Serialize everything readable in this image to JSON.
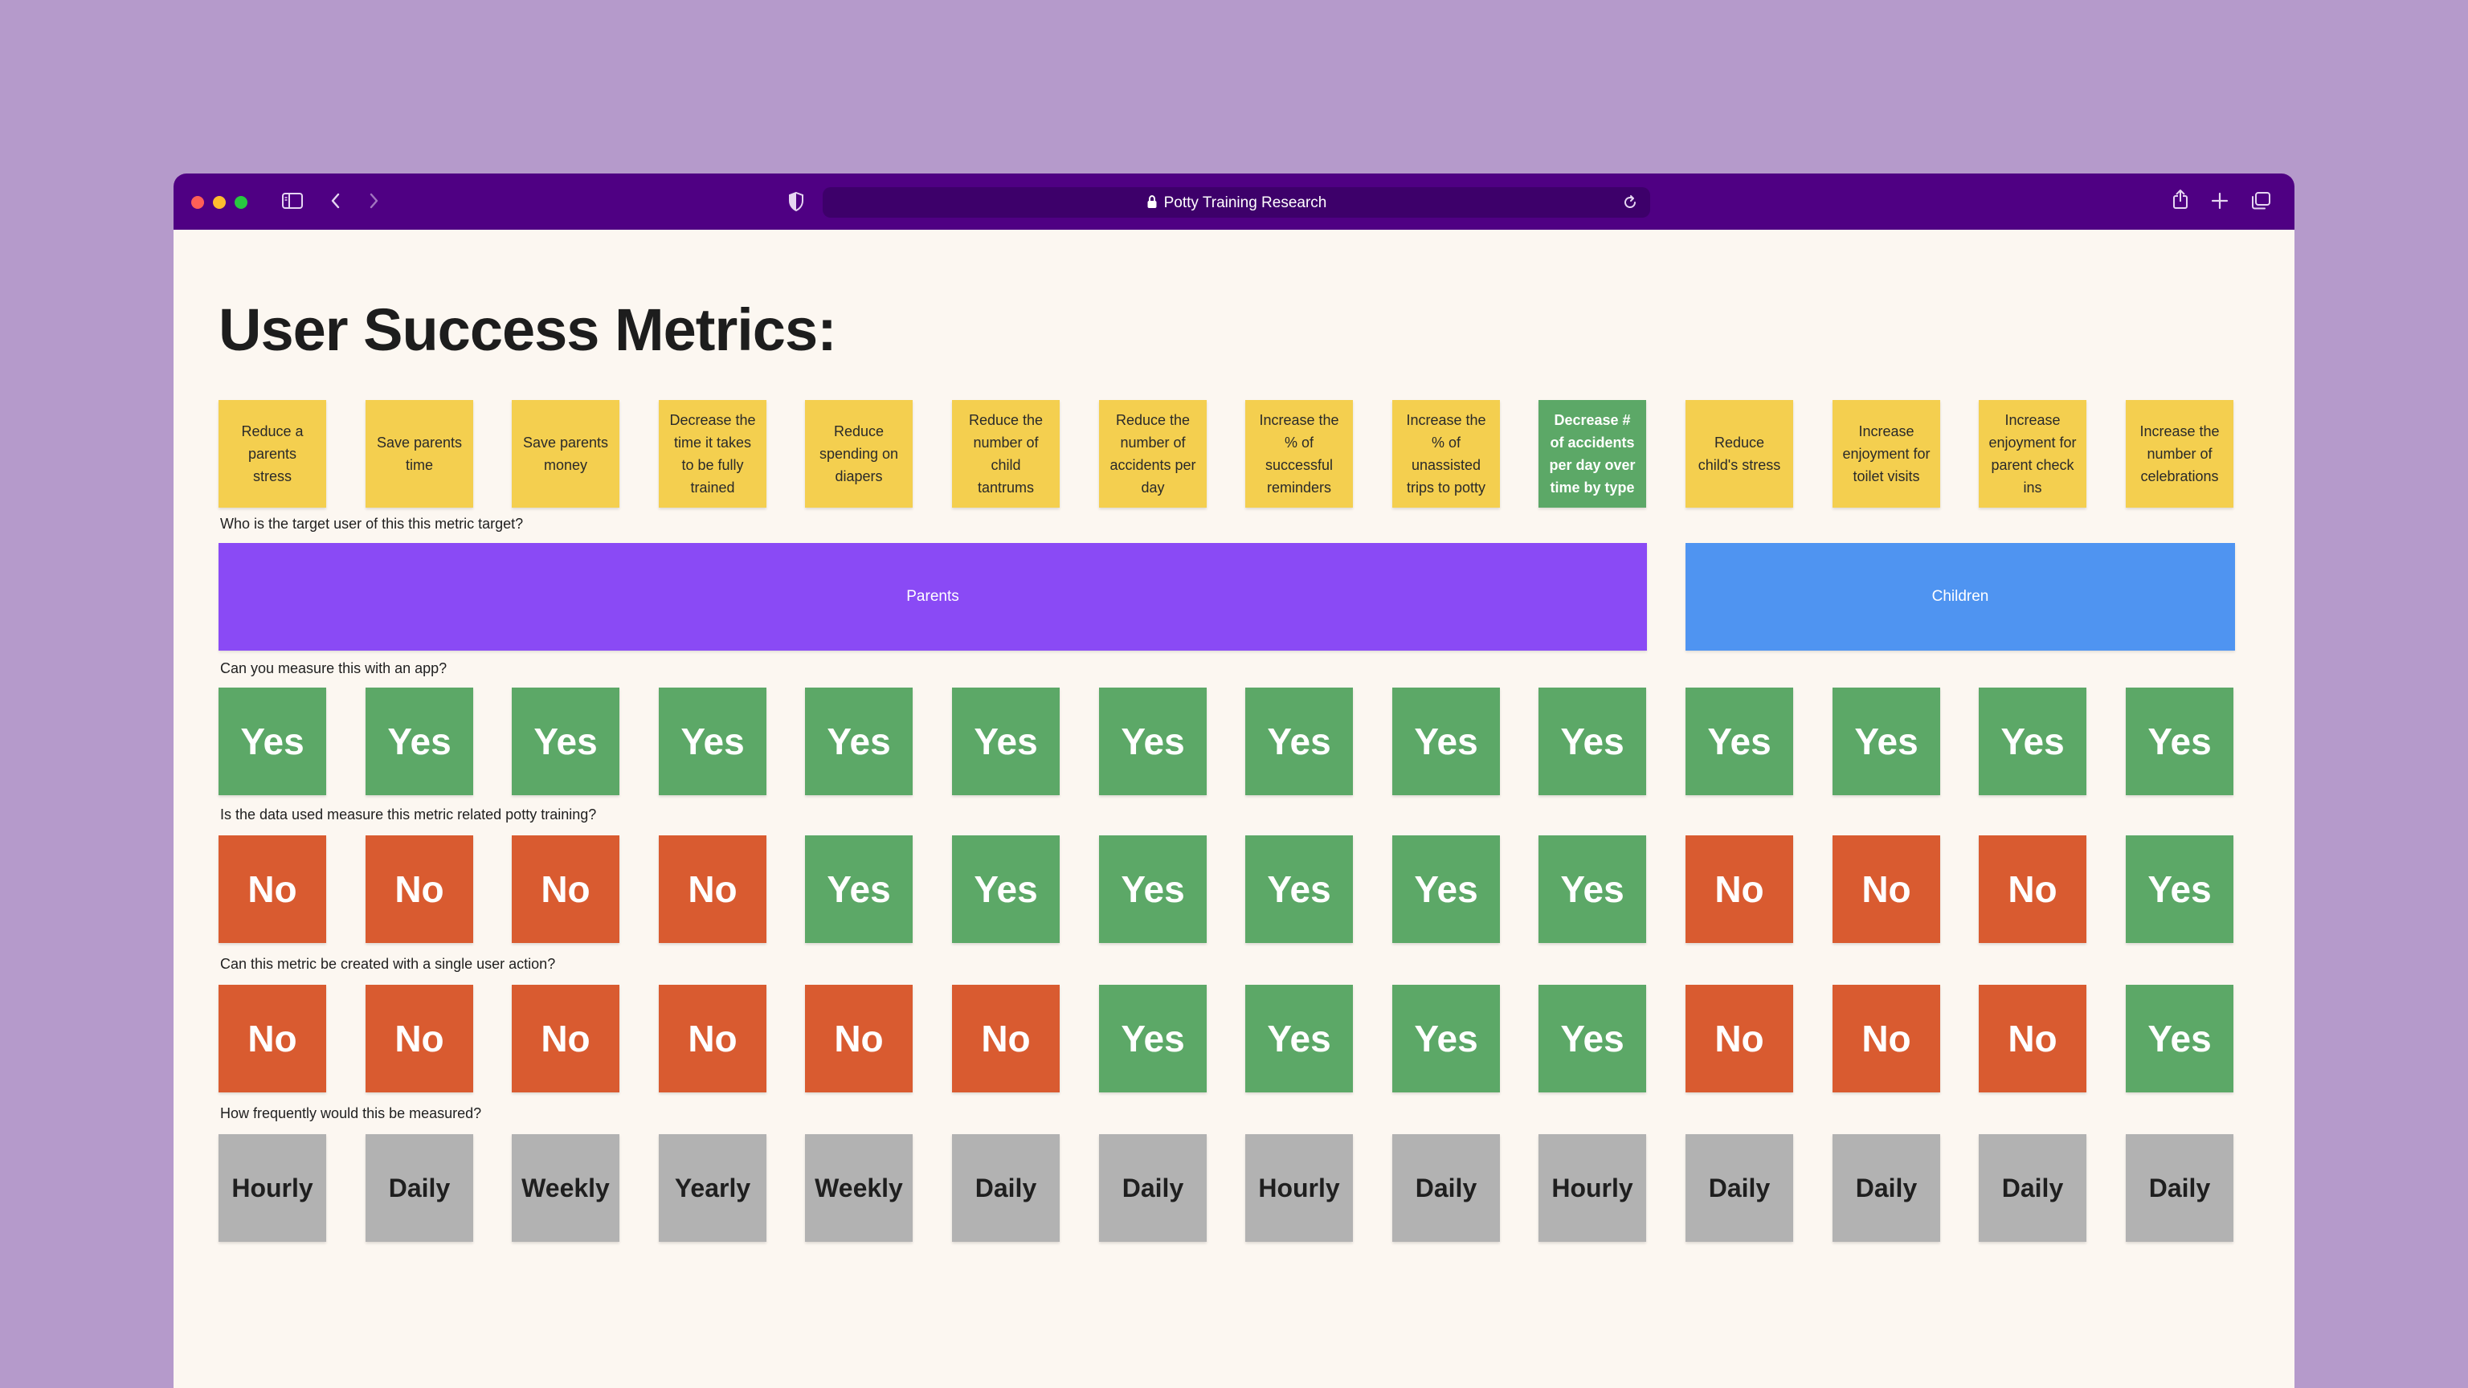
{
  "browser": {
    "url_title": "Potty Training Research",
    "traffic_colors": [
      "#ff5f57",
      "#febc2e",
      "#28c840"
    ],
    "titlebar_color": "#4f0083"
  },
  "page": {
    "title": "User Success Metrics:"
  },
  "metrics": [
    {
      "label": "Reduce a parents stress",
      "highlight": false
    },
    {
      "label": "Save parents time",
      "highlight": false
    },
    {
      "label": "Save parents money",
      "highlight": false
    },
    {
      "label": "Decrease the time it takes to be fully trained",
      "highlight": false
    },
    {
      "label": "Reduce spending on diapers",
      "highlight": false
    },
    {
      "label": "Reduce the number of child tantrums",
      "highlight": false
    },
    {
      "label": "Reduce the number of accidents per day",
      "highlight": false
    },
    {
      "label": "Increase the % of successful reminders",
      "highlight": false
    },
    {
      "label": "Increase the % of unassisted trips to potty",
      "highlight": false
    },
    {
      "label": "Decrease # of accidents per day over time by type",
      "highlight": true
    },
    {
      "label": "Reduce child's stress",
      "highlight": false
    },
    {
      "label": "Increase enjoyment for toilet visits",
      "highlight": false
    },
    {
      "label": "Increase enjoyment for parent check ins",
      "highlight": false
    },
    {
      "label": "Increase the number of celebrations",
      "highlight": false
    }
  ],
  "target_user": {
    "question": "Who is the target user of this this metric target?",
    "groups": [
      {
        "label": "Parents",
        "color": "#8a4af5"
      },
      {
        "label": "Children",
        "color": "#4f94f1"
      }
    ]
  },
  "measurable": {
    "question": "Can you measure this with an app?",
    "answers": [
      "Yes",
      "Yes",
      "Yes",
      "Yes",
      "Yes",
      "Yes",
      "Yes",
      "Yes",
      "Yes",
      "Yes",
      "Yes",
      "Yes",
      "Yes",
      "Yes"
    ]
  },
  "potty_related": {
    "question": "Is the data used measure this metric related potty training?",
    "answers": [
      "No",
      "No",
      "No",
      "No",
      "Yes",
      "Yes",
      "Yes",
      "Yes",
      "Yes",
      "Yes",
      "No",
      "No",
      "No",
      "Yes"
    ]
  },
  "single_action": {
    "question": "Can this metric be created with a single user action?",
    "answers": [
      "No",
      "No",
      "No",
      "No",
      "No",
      "No",
      "Yes",
      "Yes",
      "Yes",
      "Yes",
      "No",
      "No",
      "No",
      "Yes"
    ]
  },
  "frequency": {
    "question": "How frequently would this be measured?",
    "answers": [
      "Hourly",
      "Daily",
      "Weekly",
      "Yearly",
      "Weekly",
      "Daily",
      "Daily",
      "Hourly",
      "Daily",
      "Hourly",
      "Daily",
      "Daily",
      "Daily",
      "Daily"
    ]
  }
}
